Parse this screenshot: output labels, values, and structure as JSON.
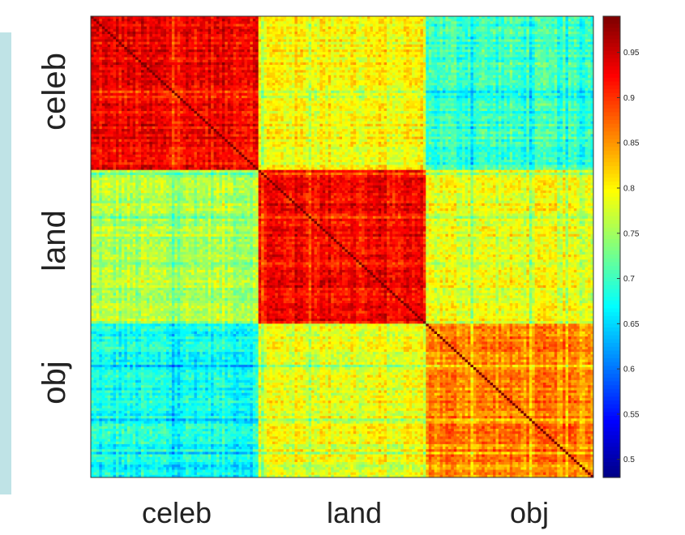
{
  "chart_data": {
    "type": "heatmap",
    "title": "",
    "xlabel": "",
    "ylabel": "",
    "categories": [
      "celeb",
      "land",
      "obj"
    ],
    "x_tick_labels": [
      "celeb",
      "land",
      "obj"
    ],
    "y_tick_labels": [
      "celeb",
      "land",
      "obj"
    ],
    "n_items_per_category": 60,
    "block_mean_values": [
      [
        0.93,
        0.8,
        0.7
      ],
      [
        0.76,
        0.93,
        0.79
      ],
      [
        0.68,
        0.79,
        0.86
      ]
    ],
    "diagonal_value": 1.0,
    "colorbar": {
      "colormap": "jet",
      "range": [
        0.48,
        0.99
      ],
      "ticks": [
        0.5,
        0.55,
        0.6,
        0.65,
        0.7,
        0.75,
        0.8,
        0.85,
        0.9,
        0.95
      ],
      "tick_labels": [
        "0.5",
        "0.55",
        "0.6",
        "0.65",
        "0.7",
        "0.75",
        "0.8",
        "0.85",
        "0.9",
        "0.95"
      ]
    }
  }
}
